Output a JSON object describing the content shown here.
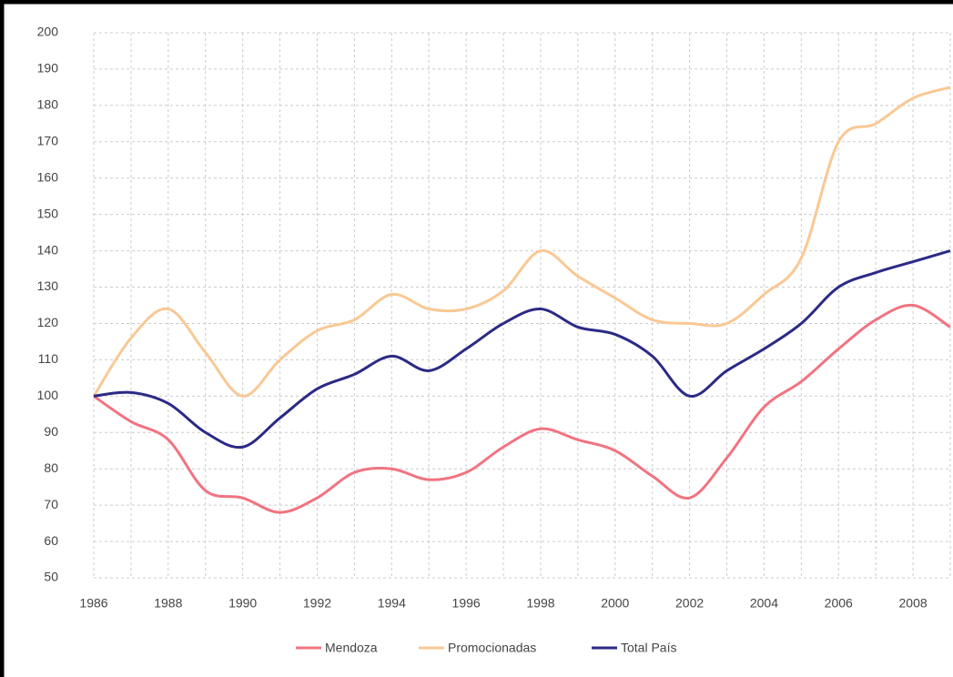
{
  "chart_data": {
    "type": "line",
    "x": [
      1986,
      1987,
      1988,
      1989,
      1990,
      1991,
      1992,
      1993,
      1994,
      1995,
      1996,
      1997,
      1998,
      1999,
      2000,
      2001,
      2002,
      2003,
      2004,
      2005,
      2006,
      2007,
      2008,
      2009
    ],
    "series": [
      {
        "name": "Mendoza",
        "color": "#f07480",
        "values": [
          100,
          93,
          88,
          74,
          72,
          68,
          72,
          79,
          80,
          77,
          79,
          86,
          91,
          88,
          85,
          78,
          72,
          83,
          97,
          104,
          113,
          121,
          125,
          119
        ]
      },
      {
        "name": "Promocionadas",
        "color": "#f9c894",
        "values": [
          100,
          116,
          124,
          112,
          100,
          110,
          118,
          121,
          128,
          124,
          124,
          129,
          140,
          133,
          127,
          121,
          120,
          120,
          128,
          138,
          170,
          175,
          182,
          185
        ]
      },
      {
        "name": "Total País",
        "color": "#2b2a86",
        "values": [
          100,
          101,
          98,
          90,
          86,
          94,
          102,
          106,
          111,
          107,
          113,
          120,
          124,
          119,
          117,
          111,
          100,
          107,
          113,
          120,
          130,
          134,
          137,
          140
        ]
      }
    ],
    "xlim": [
      1986,
      2009
    ],
    "xticks": [
      1986,
      1988,
      1990,
      1992,
      1994,
      1996,
      1998,
      2000,
      2002,
      2004,
      2006,
      2008
    ],
    "ylim": [
      50,
      200
    ],
    "yticks": [
      50,
      60,
      70,
      80,
      90,
      100,
      110,
      120,
      130,
      140,
      150,
      160,
      170,
      180,
      190,
      200
    ],
    "grid": true,
    "legend": "bottom"
  }
}
